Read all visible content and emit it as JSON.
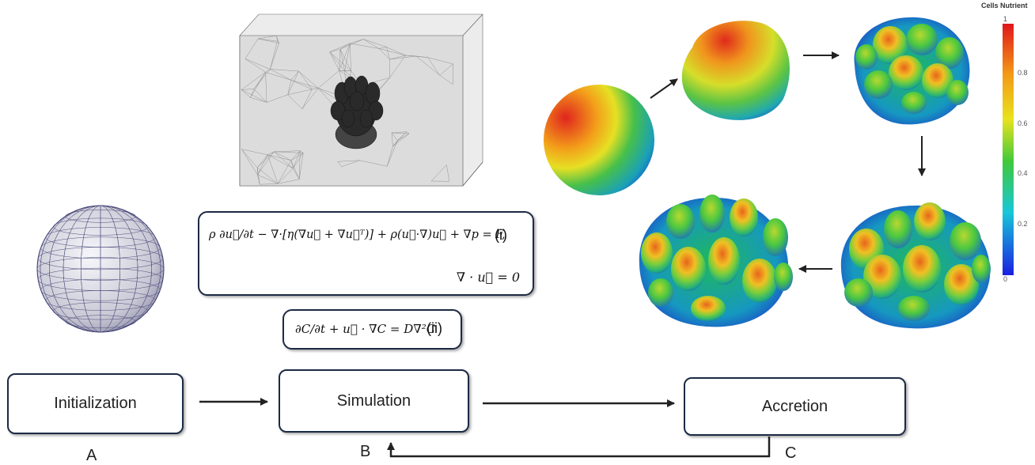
{
  "boxes": {
    "initialization": "Initialization",
    "simulation": "Simulation",
    "accretion": "Accretion"
  },
  "labels": {
    "a": "A",
    "b": "B",
    "c": "C"
  },
  "equations": {
    "momentum": "ρ ∂u⃗/∂t − ∇·[η(∇u⃗ + ∇u⃗ᵀ)] + ρ(u⃗·∇)u⃗ + ∇p = F,",
    "momentum_tag": "(i)",
    "continuity": "∇ · u⃗ = 0",
    "diffusion": "∂C/∂t + u⃗ · ∇C = D∇²C",
    "diffusion_tag": "(ii)"
  },
  "colorbar": {
    "title": "Cells Nutrient",
    "ticks": [
      "1",
      "0.8",
      "0.6",
      "0.4",
      "0.2",
      "0"
    ]
  },
  "colors": {
    "box_border": "#1c2a44",
    "arrow": "#222222"
  }
}
